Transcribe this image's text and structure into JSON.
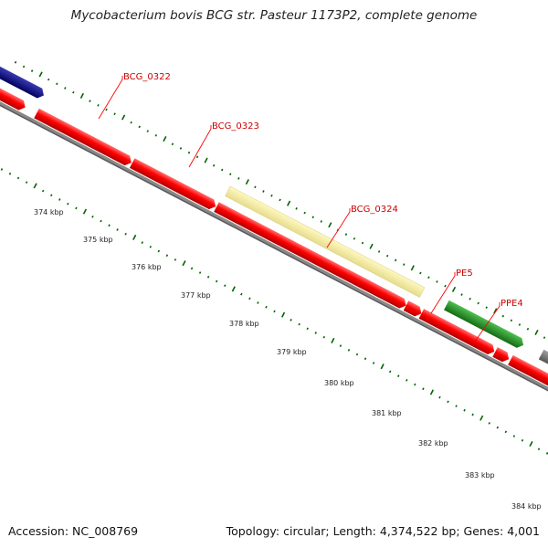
{
  "title": "Mycobacterium bovis BCG str. Pasteur 1173P2, complete genome",
  "footer": {
    "accession": "Accession: NC_008769",
    "stats": "Topology: circular; Length: 4,374,522 bp; Genes: 4,001"
  },
  "scale_labels": [
    "374 kbp",
    "375 kbp",
    "376 kbp",
    "377 kbp",
    "378 kbp",
    "379 kbp",
    "380 kbp",
    "381 kbp",
    "382 kbp",
    "383 kbp",
    "384 kbp"
  ],
  "gene_labels": [
    "BCG_0322",
    "BCG_0323",
    "BCG_0324",
    "PE5",
    "PPE4"
  ],
  "colors": {
    "forward_feature": "#ff0000",
    "feature_navy": "#000080",
    "feature_pale_yellow": "#f0e68c",
    "feature_green": "#228b22",
    "feature_gray": "#808080",
    "backbone": "#808080",
    "tick_marks": "#006400",
    "gene_label": "#cc0000",
    "label_leader": "#ff0000"
  }
}
